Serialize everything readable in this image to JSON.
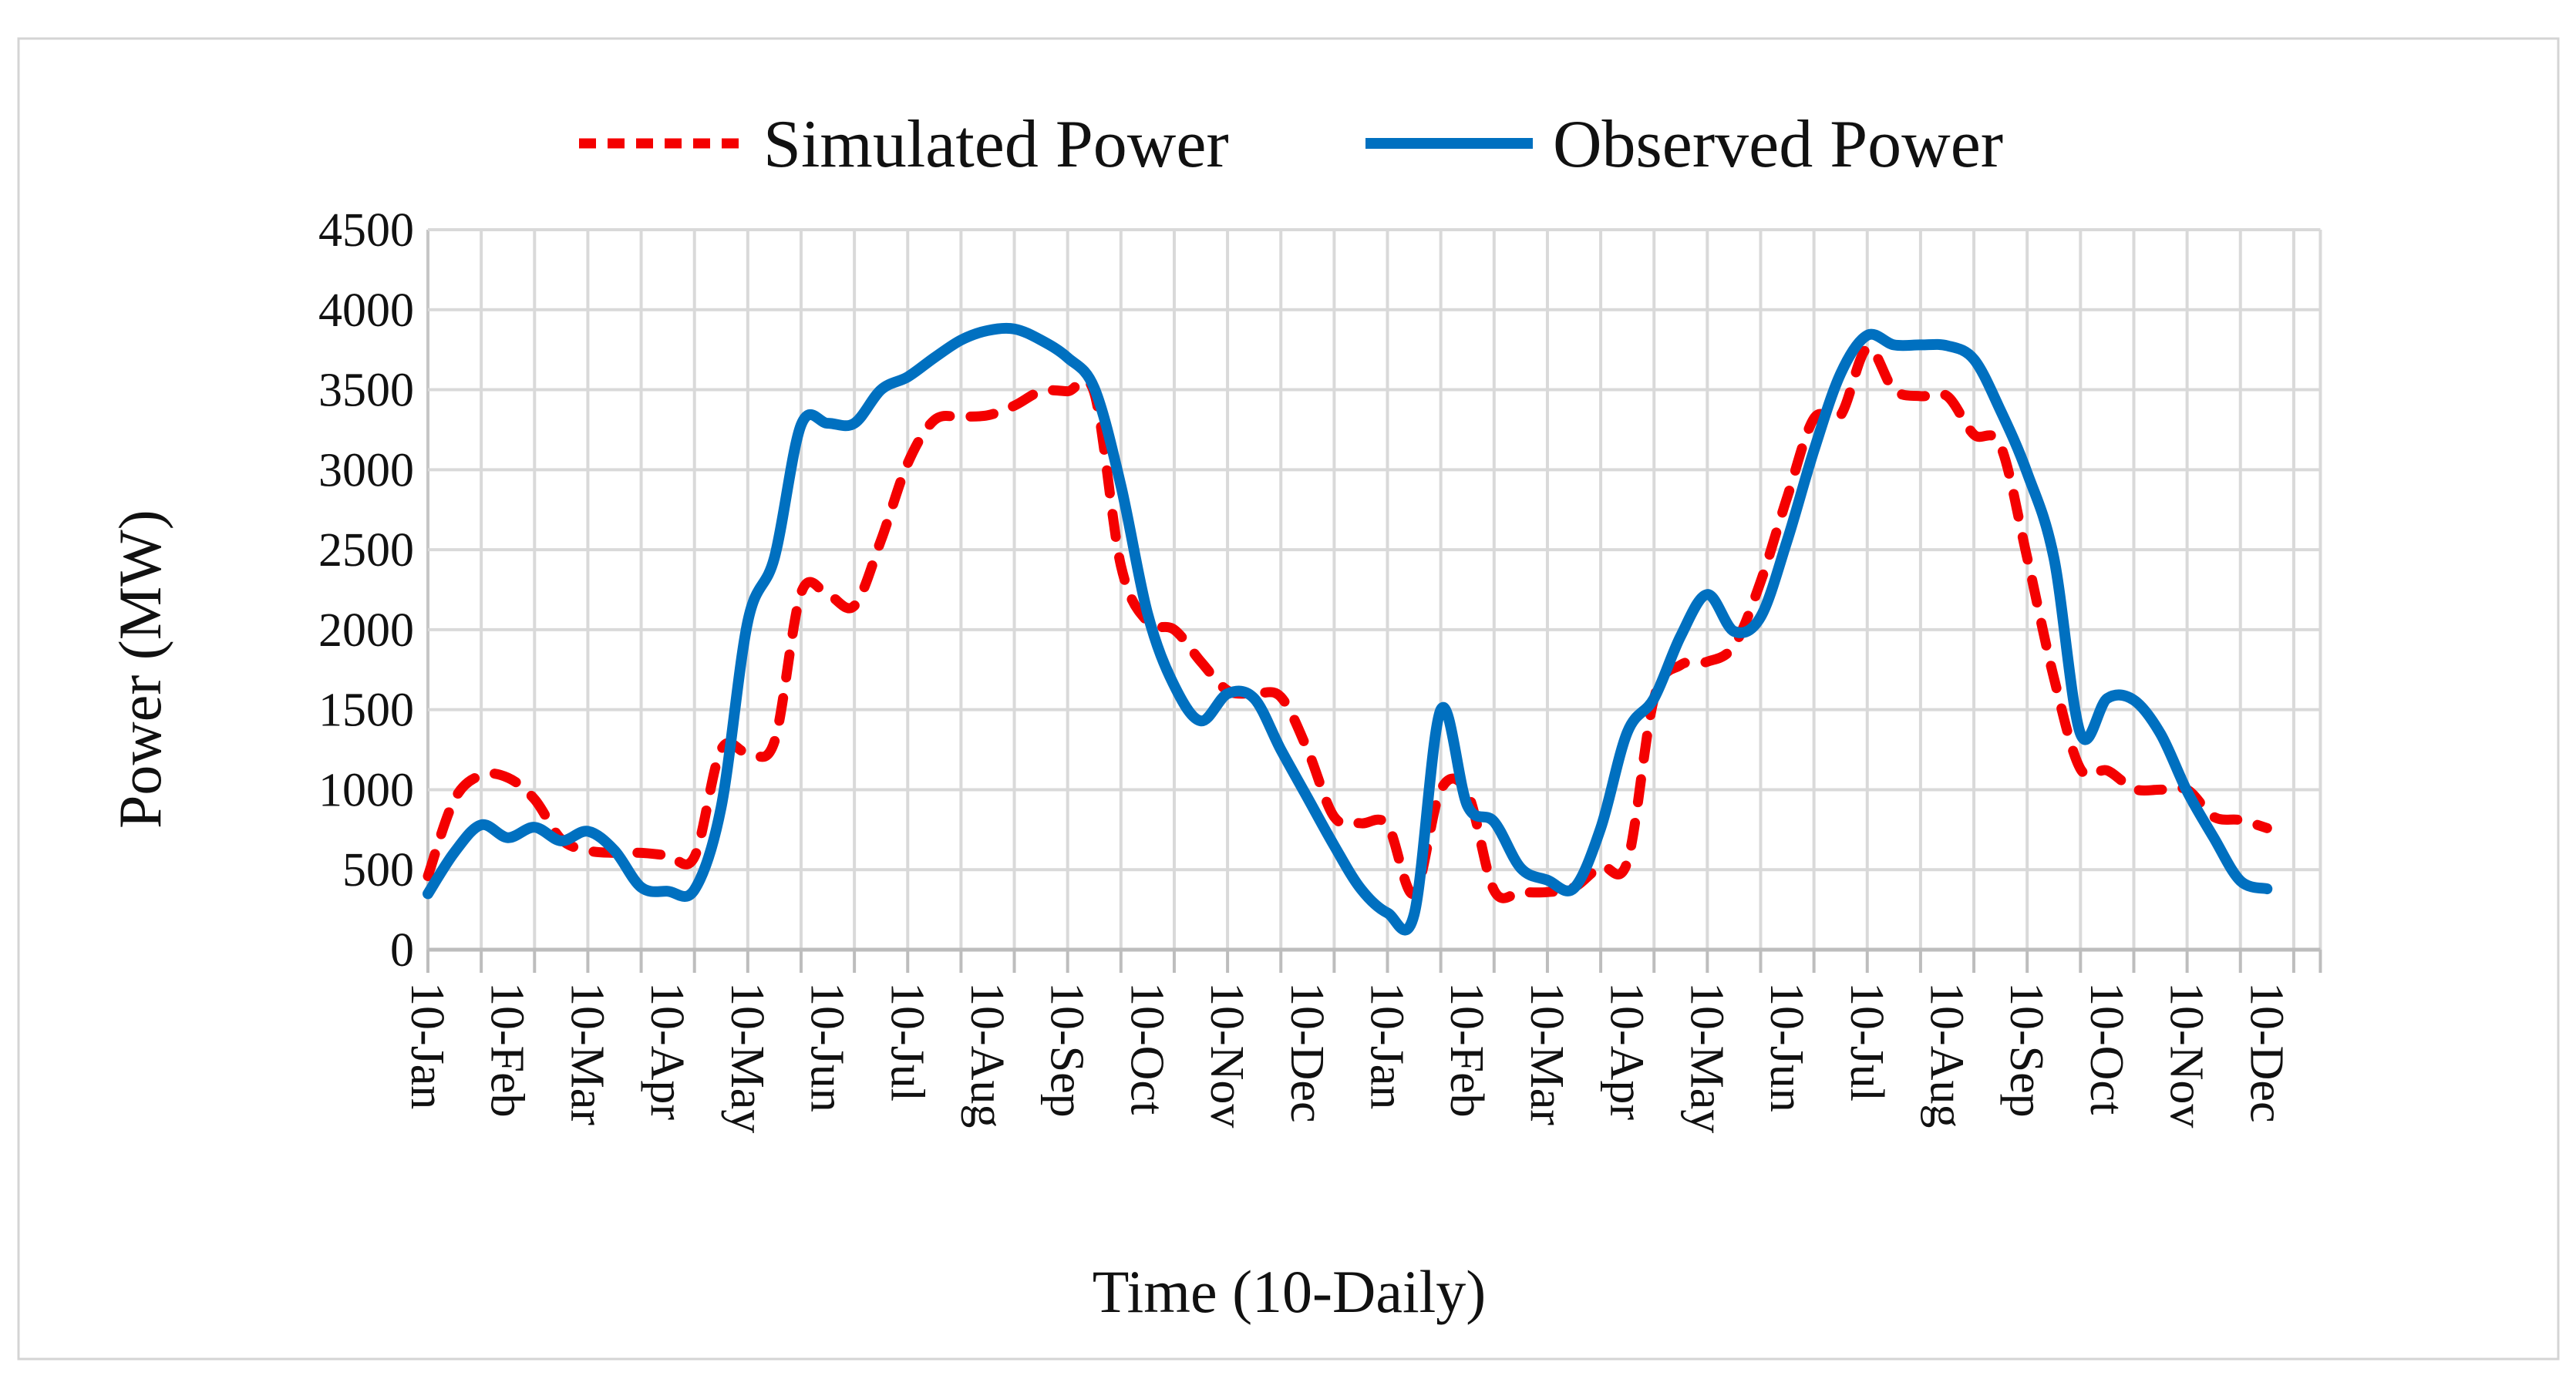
{
  "legend": {
    "simulated_label": "Simulated Power",
    "observed_label": "Observed Power"
  },
  "axes": {
    "y_title": "Power (MW)",
    "x_title": "Time (10-Daily)",
    "y_tick_labels": [
      "0",
      "500",
      "1000",
      "1500",
      "2000",
      "2500",
      "3000",
      "3500",
      "4000",
      "4500"
    ],
    "x_tick_labels": [
      "10-Jan",
      "10-Feb",
      "10-Mar",
      "10-Apr",
      "10-May",
      "10-Jun",
      "10-Jul",
      "10-Aug",
      "10-Sep",
      "10-Oct",
      "10-Nov",
      "10-Dec",
      "10-Jan",
      "10-Feb",
      "10-Mar",
      "10-Apr",
      "10-May",
      "10-Jun",
      "10-Jul",
      "10-Aug",
      "10-Sep",
      "10-Oct",
      "10-Nov",
      "10-Dec"
    ]
  },
  "colors": {
    "simulated": "#F40000",
    "observed": "#0070C0",
    "gridline": "#D9D9D9",
    "axis": "#BDBDBD",
    "frame": "#D4D4D4",
    "text": "#111111"
  },
  "chart_data": {
    "type": "line",
    "title": "",
    "xlabel": "Time (10-Daily)",
    "ylabel": "Power (MW)",
    "ylim": [
      0,
      4500
    ],
    "y_tick_step": 500,
    "grid": "both",
    "legend_position": "top-center",
    "x_description": "72 ten-daily periods over two years; one labeled category per month (label on the 10th), 70 plotted points",
    "categories": [
      "10-Jan",
      "10-Feb",
      "10-Mar",
      "10-Apr",
      "10-May",
      "10-Jun",
      "10-Jul",
      "10-Aug",
      "10-Sep",
      "10-Oct",
      "10-Nov",
      "10-Dec",
      "10-Jan",
      "10-Feb",
      "10-Mar",
      "10-Apr",
      "10-May",
      "10-Jun",
      "10-Jul",
      "10-Aug",
      "10-Sep",
      "10-Oct",
      "10-Nov",
      "10-Dec"
    ],
    "label_every_n_points": 3,
    "series": [
      {
        "name": "Simulated Power",
        "style": "dashed",
        "color": "#F40000",
        "values": [
          460,
          940,
          1090,
          1075,
          940,
          690,
          620,
          605,
          605,
          590,
          580,
          1250,
          1230,
          1300,
          2230,
          2220,
          2150,
          2560,
          3040,
          3310,
          3330,
          3340,
          3400,
          3490,
          3490,
          3480,
          2400,
          2050,
          2000,
          1800,
          1620,
          1600,
          1580,
          1250,
          830,
          790,
          780,
          350,
          1000,
          980,
          370,
          360,
          360,
          390,
          520,
          550,
          1570,
          1780,
          1800,
          1900,
          2300,
          2830,
          3320,
          3340,
          3760,
          3500,
          3460,
          3460,
          3220,
          3150,
          2450,
          1700,
          1130,
          1120,
          1005,
          1000,
          1000,
          830,
          810,
          760
        ]
      },
      {
        "name": "Observed Power",
        "style": "solid",
        "color": "#0070C0",
        "values": [
          350,
          610,
          780,
          700,
          765,
          680,
          740,
          620,
          390,
          365,
          375,
          890,
          2050,
          2450,
          3280,
          3290,
          3290,
          3500,
          3580,
          3700,
          3810,
          3870,
          3880,
          3810,
          3700,
          3510,
          2900,
          2100,
          1650,
          1430,
          1600,
          1570,
          1250,
          950,
          650,
          380,
          230,
          220,
          1500,
          900,
          800,
          510,
          435,
          385,
          760,
          1360,
          1570,
          1960,
          2220,
          1990,
          2080,
          2560,
          3120,
          3600,
          3840,
          3780,
          3780,
          3775,
          3690,
          3370,
          2980,
          2450,
          1350,
          1570,
          1560,
          1350,
          990,
          700,
          430,
          380
        ]
      }
    ]
  }
}
